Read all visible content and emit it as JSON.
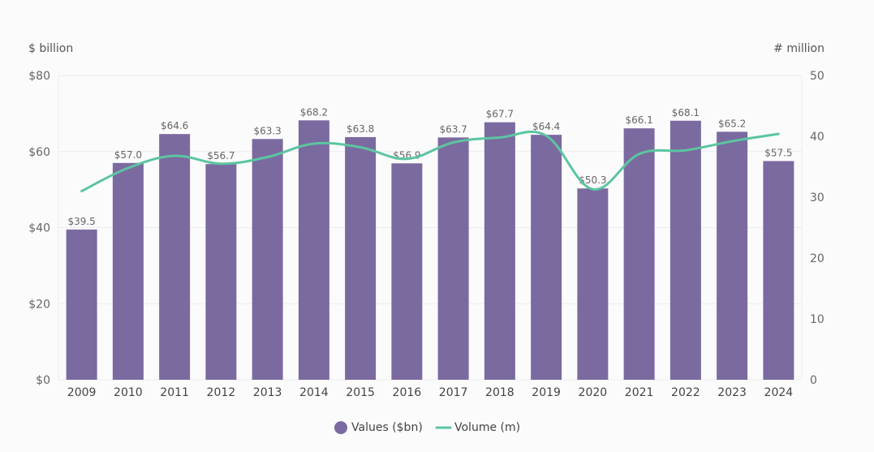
{
  "chart_data": {
    "type": "bar",
    "categories": [
      "2009",
      "2010",
      "2011",
      "2012",
      "2013",
      "2014",
      "2015",
      "2016",
      "2017",
      "2018",
      "2019",
      "2020",
      "2021",
      "2022",
      "2023",
      "2024"
    ],
    "left_axis": {
      "unit": "$ billion",
      "ylim": [
        0,
        80
      ],
      "ticks": [
        0,
        20,
        40,
        60,
        80
      ],
      "tick_labels": [
        "$0",
        "$20",
        "$40",
        "$60",
        "$80"
      ]
    },
    "right_axis": {
      "unit": "# million",
      "ylim": [
        0,
        50
      ],
      "ticks": [
        0,
        10,
        20,
        30,
        40,
        50
      ],
      "tick_labels": [
        "0",
        "10",
        "20",
        "30",
        "40",
        "50"
      ]
    },
    "series": [
      {
        "name": "Values ($bn)",
        "type": "bar",
        "axis": "left",
        "color": "#7b6aa0",
        "values": [
          39.5,
          57.0,
          64.6,
          56.7,
          63.3,
          68.2,
          63.8,
          56.9,
          63.7,
          67.7,
          64.4,
          50.3,
          66.1,
          68.1,
          65.2,
          57.5
        ],
        "labels": [
          "$39.5",
          "$57.0",
          "$64.6",
          "$56.7",
          "$63.3",
          "$68.2",
          "$63.8",
          "$56.9",
          "$63.7",
          "$67.7",
          "$64.4",
          "$50.3",
          "$66.1",
          "$68.1",
          "$65.2",
          "$57.5"
        ]
      },
      {
        "name": "Volume (m)",
        "type": "line",
        "axis": "right",
        "color": "#5cc5a0",
        "values": [
          31.0,
          34.8,
          36.8,
          35.5,
          36.6,
          38.8,
          38.2,
          36.3,
          39.0,
          39.8,
          40.1,
          31.3,
          37.1,
          37.7,
          39.2,
          40.4
        ]
      }
    ],
    "grid": true,
    "legend": "bottom-center"
  }
}
